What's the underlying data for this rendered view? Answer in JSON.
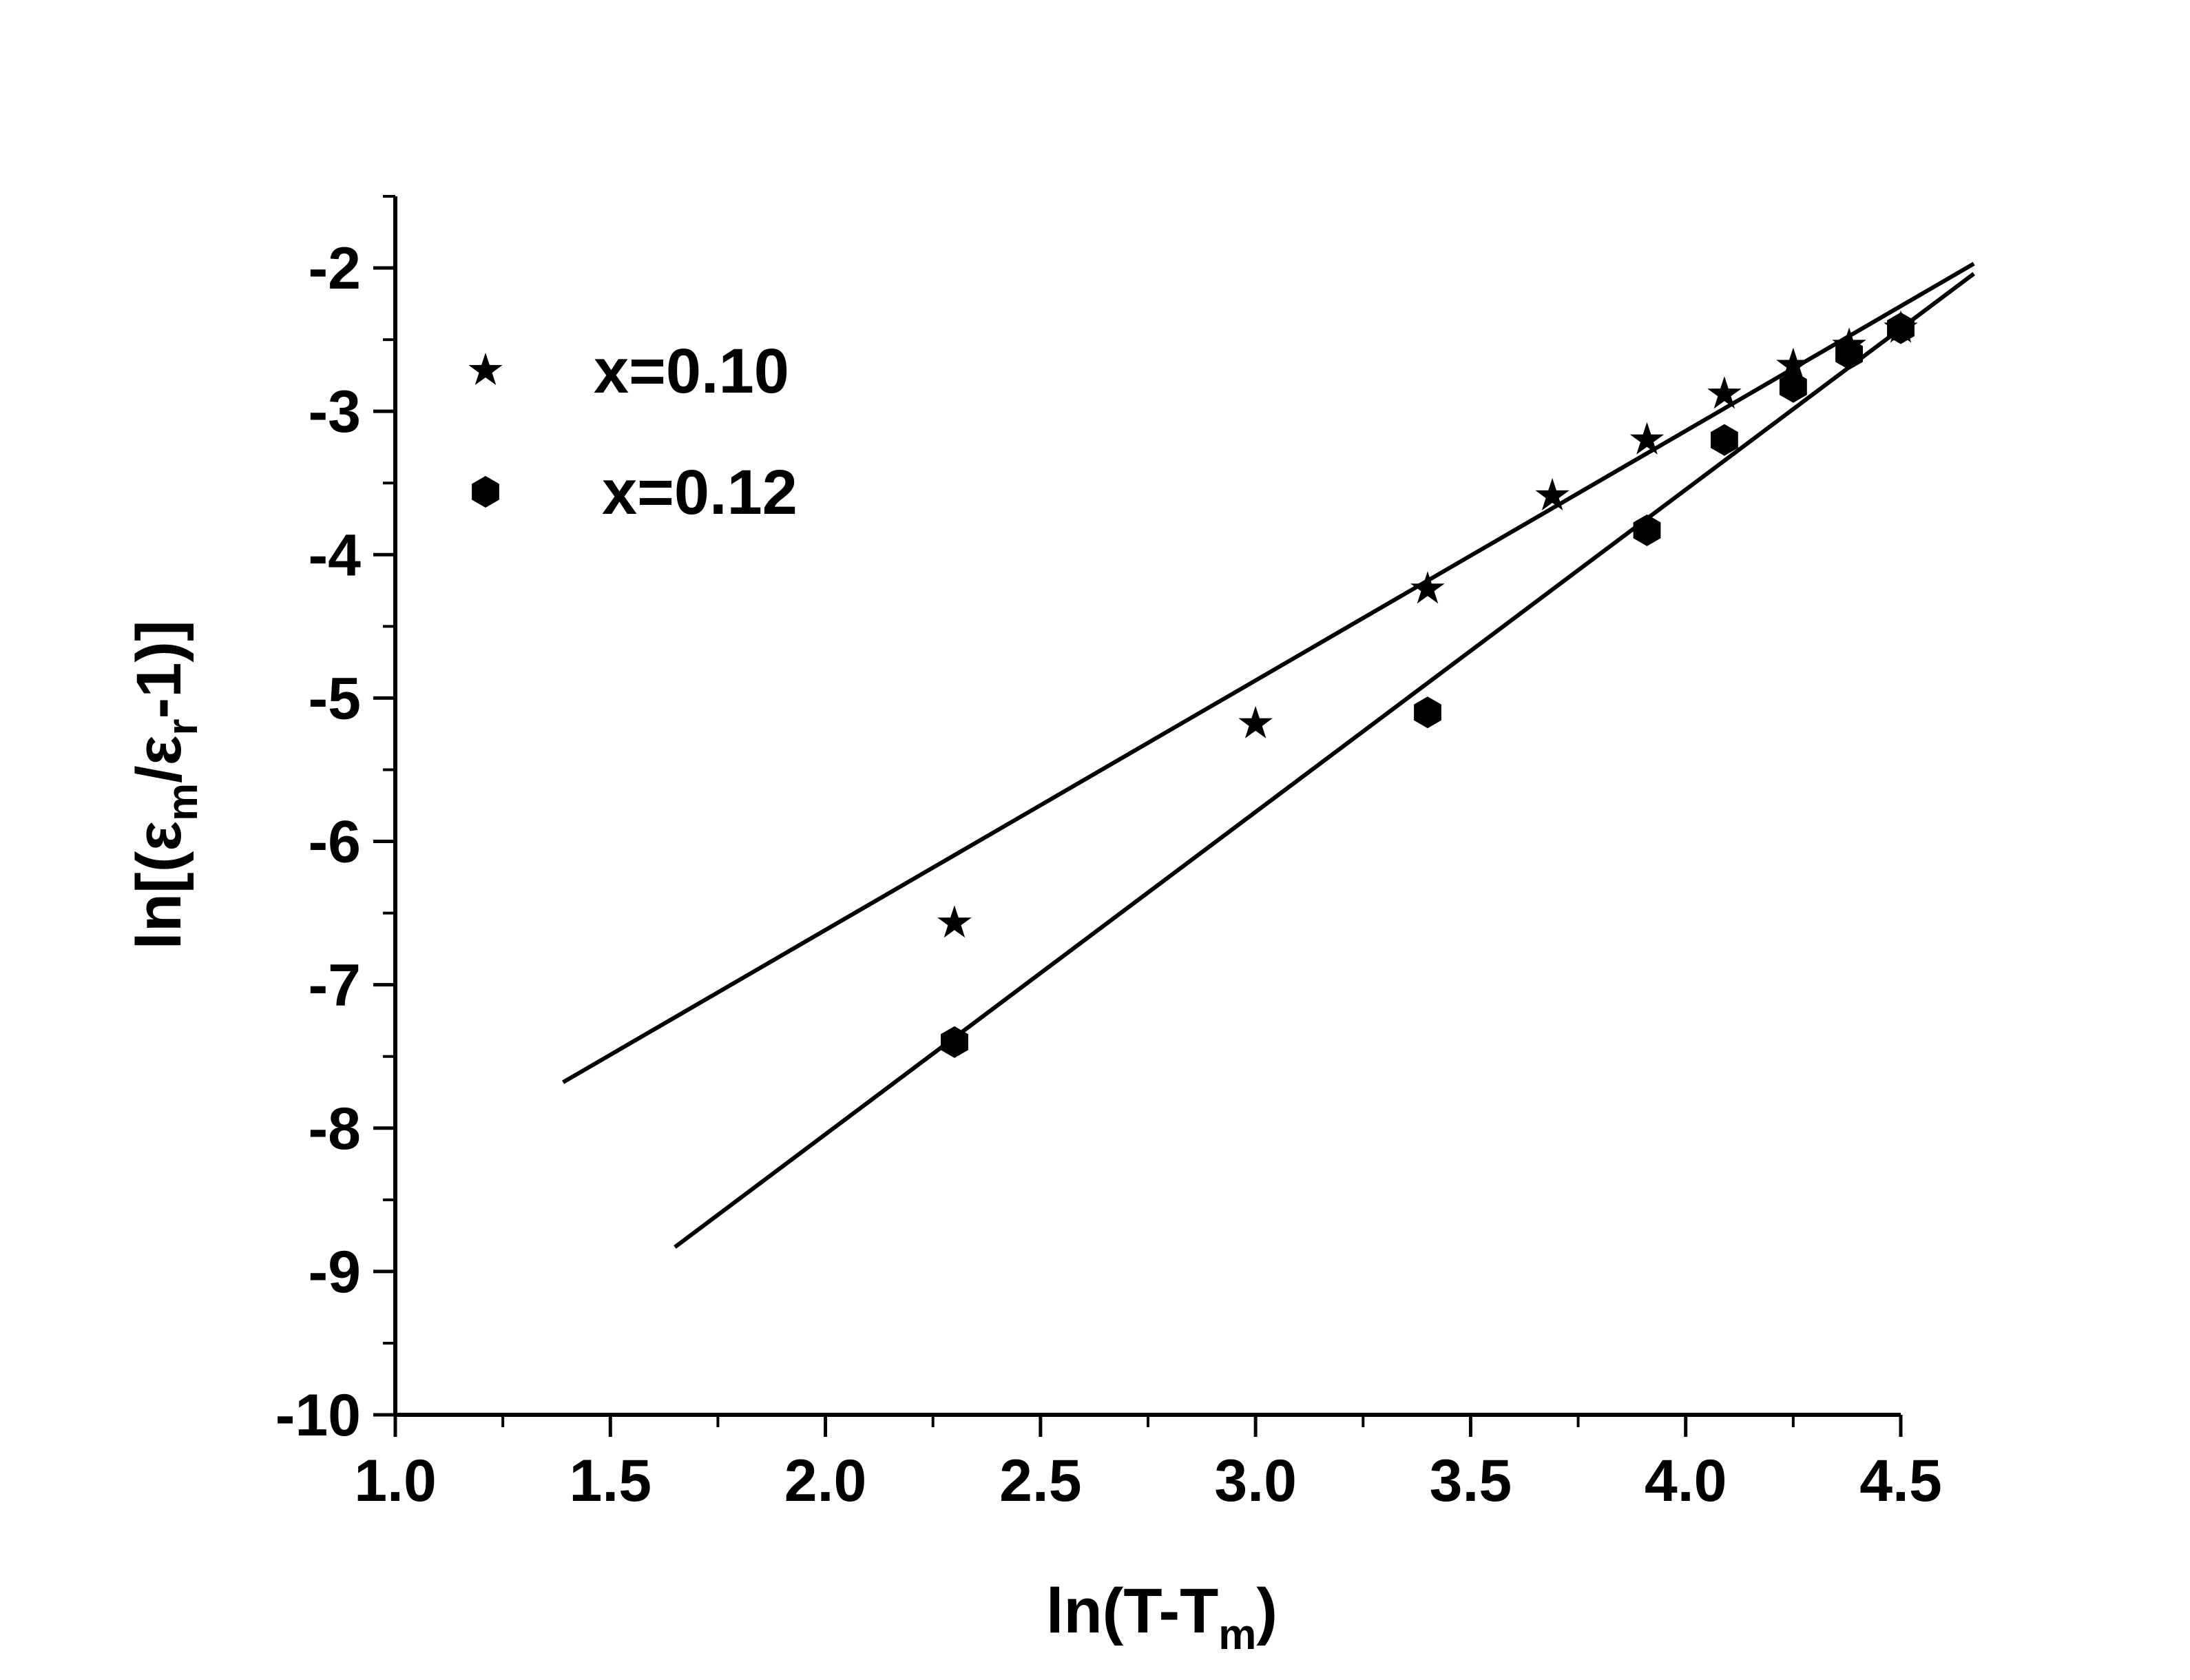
{
  "chart_data": {
    "type": "scatter",
    "xlabel": {
      "main": "ln(T-T",
      "sub": "m",
      "tail": ")"
    },
    "ylabel": {
      "parts": [
        {
          "text": "ln[(ε",
          "sub": false
        },
        {
          "text": "m",
          "sub": true
        },
        {
          "text": "/ε",
          "sub": false
        },
        {
          "text": "r",
          "sub": true
        },
        {
          "text": "-1)]",
          "sub": false
        }
      ]
    },
    "xlim": [
      1.0,
      4.5
    ],
    "ylim": [
      -10,
      -1.5
    ],
    "x_ticks": [
      "1.0",
      "1.5",
      "2.0",
      "2.5",
      "3.0",
      "3.5",
      "4.0",
      "4.5"
    ],
    "y_ticks": [
      "-2",
      "-3",
      "-4",
      "-5",
      "-6",
      "-7",
      "-8",
      "-9",
      "-10"
    ],
    "legend_position": "top-left",
    "series": [
      {
        "name": "x=0.10",
        "marker": "star",
        "points": [
          [
            2.3,
            -6.57
          ],
          [
            3.0,
            -5.18
          ],
          [
            3.4,
            -4.24
          ],
          [
            3.69,
            -3.59
          ],
          [
            3.91,
            -3.2
          ],
          [
            4.09,
            -2.88
          ],
          [
            4.25,
            -2.68
          ],
          [
            4.38,
            -2.54
          ],
          [
            4.5,
            -2.42
          ]
        ],
        "fit": {
          "x": [
            1.39,
            4.67
          ],
          "y": [
            -7.68,
            -1.97
          ]
        }
      },
      {
        "name": "x=0.12",
        "marker": "hexagon",
        "points": [
          [
            2.3,
            -7.4
          ],
          [
            3.4,
            -5.1
          ],
          [
            3.91,
            -3.83
          ],
          [
            4.09,
            -3.2
          ],
          [
            4.25,
            -2.83
          ],
          [
            4.38,
            -2.6
          ],
          [
            4.5,
            -2.42
          ]
        ],
        "fit": {
          "x": [
            1.65,
            4.67
          ],
          "y": [
            -8.83,
            -2.04
          ]
        }
      }
    ]
  }
}
